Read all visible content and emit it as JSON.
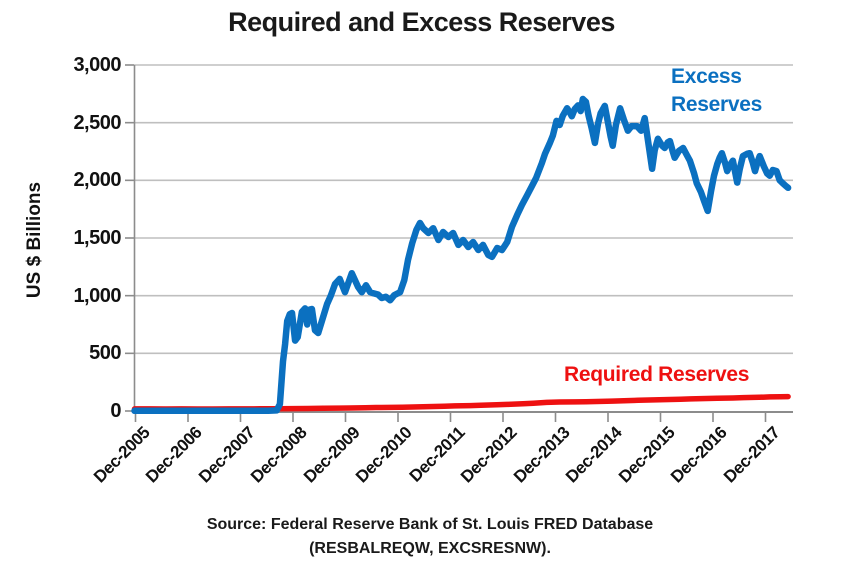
{
  "chart_data": {
    "type": "line",
    "title": "Required and Excess Reserves",
    "xlabel": "",
    "ylabel": "US $ Billions",
    "ylim": [
      0,
      3000
    ],
    "grid": "horizontal gridlines on, light gray",
    "legend": "inline colored annotations (no legend box)",
    "y_ticks": [
      0,
      500,
      1000,
      1500,
      2000,
      2500,
      3000
    ],
    "y_tick_labels": [
      "0",
      "500",
      "1,000",
      "1,500",
      "2,000",
      "2,500",
      "3,000"
    ],
    "x_tick_labels": [
      "Dec-2005",
      "Dec-2006",
      "Dec-2007",
      "Dec-2008",
      "Dec-2009",
      "Dec-2010",
      "Dec-2011",
      "Dec-2012",
      "Dec-2013",
      "Dec-2014",
      "Dec-2015",
      "Dec-2016",
      "Dec-2017"
    ],
    "x_units": "decimal years (Dec-2005 = 2005.92)",
    "series": [
      {
        "name": "Excess Reserves",
        "color": "#0B70C0",
        "points": [
          [
            2005.9,
            2
          ],
          [
            2006.2,
            2
          ],
          [
            2006.5,
            2
          ],
          [
            2006.8,
            2
          ],
          [
            2007.1,
            2
          ],
          [
            2007.4,
            2
          ],
          [
            2007.7,
            2
          ],
          [
            2008.0,
            2
          ],
          [
            2008.25,
            2
          ],
          [
            2008.45,
            2
          ],
          [
            2008.61,
            5
          ],
          [
            2008.67,
            60
          ],
          [
            2008.73,
            430
          ],
          [
            2008.77,
            580
          ],
          [
            2008.81,
            780
          ],
          [
            2008.86,
            840
          ],
          [
            2008.9,
            850
          ],
          [
            2008.96,
            610
          ],
          [
            2009.01,
            640
          ],
          [
            2009.09,
            860
          ],
          [
            2009.15,
            890
          ],
          [
            2009.19,
            750
          ],
          [
            2009.24,
            880
          ],
          [
            2009.28,
            884
          ],
          [
            2009.34,
            700
          ],
          [
            2009.4,
            676
          ],
          [
            2009.47,
            780
          ],
          [
            2009.57,
            928
          ],
          [
            2009.64,
            1000
          ],
          [
            2009.72,
            1100
          ],
          [
            2009.81,
            1145
          ],
          [
            2009.91,
            1030
          ],
          [
            2010.04,
            1195
          ],
          [
            2010.16,
            1075
          ],
          [
            2010.23,
            1030
          ],
          [
            2010.31,
            1090
          ],
          [
            2010.39,
            1030
          ],
          [
            2010.46,
            1020
          ],
          [
            2010.54,
            1010
          ],
          [
            2010.61,
            980
          ],
          [
            2010.69,
            990
          ],
          [
            2010.77,
            960
          ],
          [
            2010.85,
            1005
          ],
          [
            2010.96,
            1030
          ],
          [
            2011.04,
            1135
          ],
          [
            2011.11,
            1310
          ],
          [
            2011.19,
            1455
          ],
          [
            2011.27,
            1570
          ],
          [
            2011.34,
            1630
          ],
          [
            2011.4,
            1585
          ],
          [
            2011.5,
            1543
          ],
          [
            2011.59,
            1585
          ],
          [
            2011.69,
            1483
          ],
          [
            2011.78,
            1552
          ],
          [
            2011.88,
            1509
          ],
          [
            2011.97,
            1543
          ],
          [
            2012.07,
            1440
          ],
          [
            2012.16,
            1483
          ],
          [
            2012.26,
            1422
          ],
          [
            2012.35,
            1465
          ],
          [
            2012.45,
            1396
          ],
          [
            2012.54,
            1440
          ],
          [
            2012.64,
            1353
          ],
          [
            2012.71,
            1336
          ],
          [
            2012.81,
            1413
          ],
          [
            2012.9,
            1396
          ],
          [
            2013.0,
            1465
          ],
          [
            2013.09,
            1595
          ],
          [
            2013.19,
            1700
          ],
          [
            2013.28,
            1786
          ],
          [
            2013.38,
            1872
          ],
          [
            2013.47,
            1950
          ],
          [
            2013.55,
            2020
          ],
          [
            2013.66,
            2150
          ],
          [
            2013.72,
            2230
          ],
          [
            2013.81,
            2320
          ],
          [
            2013.87,
            2390
          ],
          [
            2013.94,
            2515
          ],
          [
            2014.0,
            2480
          ],
          [
            2014.06,
            2560
          ],
          [
            2014.14,
            2625
          ],
          [
            2014.19,
            2590
          ],
          [
            2014.23,
            2555
          ],
          [
            2014.29,
            2620
          ],
          [
            2014.35,
            2650
          ],
          [
            2014.4,
            2600
          ],
          [
            2014.44,
            2705
          ],
          [
            2014.5,
            2680
          ],
          [
            2014.55,
            2560
          ],
          [
            2014.61,
            2450
          ],
          [
            2014.67,
            2325
          ],
          [
            2014.73,
            2490
          ],
          [
            2014.78,
            2580
          ],
          [
            2014.86,
            2645
          ],
          [
            2014.92,
            2500
          ],
          [
            2014.97,
            2380
          ],
          [
            2015.01,
            2300
          ],
          [
            2015.07,
            2480
          ],
          [
            2015.15,
            2625
          ],
          [
            2015.22,
            2530
          ],
          [
            2015.3,
            2430
          ],
          [
            2015.37,
            2470
          ],
          [
            2015.47,
            2470
          ],
          [
            2015.55,
            2430
          ],
          [
            2015.62,
            2540
          ],
          [
            2015.68,
            2350
          ],
          [
            2015.76,
            2100
          ],
          [
            2015.81,
            2260
          ],
          [
            2015.87,
            2360
          ],
          [
            2015.95,
            2300
          ],
          [
            2016.0,
            2280
          ],
          [
            2016.06,
            2330
          ],
          [
            2016.1,
            2340
          ],
          [
            2016.16,
            2240
          ],
          [
            2016.19,
            2195
          ],
          [
            2016.27,
            2255
          ],
          [
            2016.35,
            2280
          ],
          [
            2016.42,
            2220
          ],
          [
            2016.48,
            2170
          ],
          [
            2016.56,
            2060
          ],
          [
            2016.61,
            1975
          ],
          [
            2016.69,
            1900
          ],
          [
            2016.75,
            1820
          ],
          [
            2016.82,
            1735
          ],
          [
            2016.88,
            1900
          ],
          [
            2016.94,
            2040
          ],
          [
            2017.0,
            2140
          ],
          [
            2017.05,
            2200
          ],
          [
            2017.09,
            2235
          ],
          [
            2017.15,
            2150
          ],
          [
            2017.19,
            2080
          ],
          [
            2017.24,
            2130
          ],
          [
            2017.3,
            2170
          ],
          [
            2017.38,
            1980
          ],
          [
            2017.43,
            2100
          ],
          [
            2017.49,
            2210
          ],
          [
            2017.57,
            2230
          ],
          [
            2017.62,
            2235
          ],
          [
            2017.68,
            2150
          ],
          [
            2017.72,
            2080
          ],
          [
            2017.77,
            2160
          ],
          [
            2017.81,
            2210
          ],
          [
            2017.89,
            2120
          ],
          [
            2017.95,
            2060
          ],
          [
            2018.0,
            2040
          ],
          [
            2018.06,
            2090
          ],
          [
            2018.13,
            2080
          ],
          [
            2018.19,
            2000
          ],
          [
            2018.25,
            1975
          ],
          [
            2018.31,
            1950
          ],
          [
            2018.35,
            1935
          ]
        ]
      },
      {
        "name": "Required Reserves",
        "color": "#EE1111",
        "points": [
          [
            2005.9,
            18
          ],
          [
            2006.2,
            18
          ],
          [
            2006.5,
            17
          ],
          [
            2006.8,
            18
          ],
          [
            2007.1,
            17
          ],
          [
            2007.4,
            17
          ],
          [
            2007.7,
            18
          ],
          [
            2008.0,
            18
          ],
          [
            2008.3,
            19
          ],
          [
            2008.61,
            20
          ],
          [
            2008.9,
            21
          ],
          [
            2009.2,
            22
          ],
          [
            2009.5,
            24
          ],
          [
            2009.8,
            25
          ],
          [
            2010.0,
            26
          ],
          [
            2010.3,
            28
          ],
          [
            2010.5,
            30
          ],
          [
            2010.8,
            31
          ],
          [
            2011.0,
            33
          ],
          [
            2011.2,
            35
          ],
          [
            2011.5,
            38
          ],
          [
            2011.8,
            41
          ],
          [
            2012.0,
            44
          ],
          [
            2012.3,
            47
          ],
          [
            2012.5,
            50
          ],
          [
            2012.8,
            54
          ],
          [
            2013.0,
            57
          ],
          [
            2013.3,
            62
          ],
          [
            2013.5,
            68
          ],
          [
            2013.75,
            75
          ],
          [
            2014.0,
            78
          ],
          [
            2014.3,
            79
          ],
          [
            2014.5,
            80
          ],
          [
            2014.8,
            83
          ],
          [
            2015.0,
            86
          ],
          [
            2015.3,
            90
          ],
          [
            2015.5,
            93
          ],
          [
            2015.8,
            96
          ],
          [
            2016.0,
            99
          ],
          [
            2016.3,
            102
          ],
          [
            2016.5,
            105
          ],
          [
            2016.8,
            108
          ],
          [
            2017.0,
            110
          ],
          [
            2017.3,
            113
          ],
          [
            2017.5,
            116
          ],
          [
            2017.8,
            119
          ],
          [
            2018.0,
            122
          ],
          [
            2018.2,
            124
          ],
          [
            2018.35,
            125
          ]
        ]
      }
    ],
    "annotations": {
      "excess": {
        "line1": "Excess",
        "line2": "Reserves",
        "color": "#0B70C0"
      },
      "required": {
        "text": "Required Reserves",
        "color": "#EE1111"
      }
    },
    "source": {
      "line1": "Source:  Federal Reserve Bank of St. Louis FRED Database",
      "line2": "(RESBALREQW, EXCSRESNW)."
    }
  },
  "colors": {
    "excess_line": "#0B70C0",
    "required_line": "#EE1111",
    "gridline": "#BFBFBF",
    "axis": "#8C8C8C",
    "text": "#1a1a1a",
    "background": "#FFFFFF"
  }
}
